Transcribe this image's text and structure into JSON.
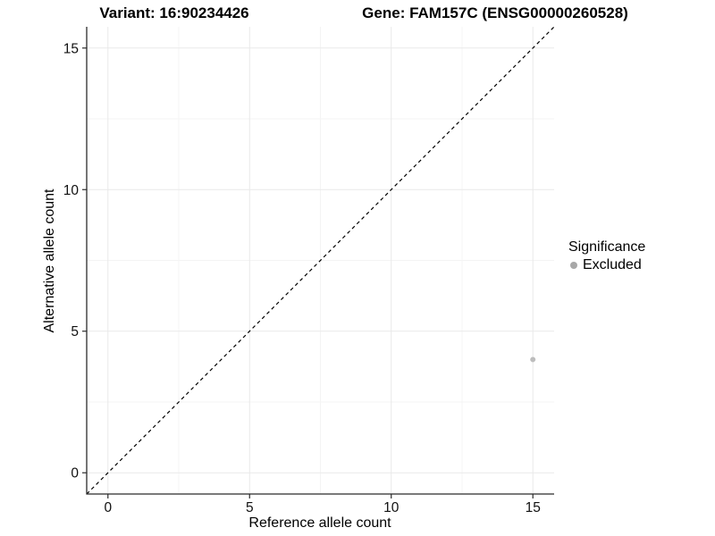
{
  "titles": {
    "variant": "Variant: 16:90234426",
    "gene": "Gene: FAM157C (ENSG00000260528)"
  },
  "chart_data": {
    "type": "scatter",
    "title_left": "Variant: 16:90234426",
    "title_right": "Gene: FAM157C (ENSG00000260528)",
    "xlabel": "Reference allele count",
    "ylabel": "Alternative allele count",
    "xlim": [
      -0.75,
      15.75
    ],
    "ylim": [
      -0.75,
      15.75
    ],
    "xticks": [
      0,
      5,
      10,
      15
    ],
    "yticks": [
      0,
      5,
      10,
      15
    ],
    "minor_xticks": [
      2.5,
      7.5,
      12.5
    ],
    "minor_yticks": [
      2.5,
      7.5,
      12.5
    ],
    "grid": true,
    "identity_line": {
      "from": [
        -0.75,
        -0.75
      ],
      "to": [
        15.75,
        15.75
      ],
      "style": "dashed",
      "color": "#000000"
    },
    "series": [
      {
        "name": "Excluded",
        "color": "#bdbdbd",
        "points": [
          {
            "x": 15,
            "y": 4
          }
        ]
      }
    ],
    "legend": {
      "position": "right",
      "title": "Significance",
      "entries": [
        {
          "label": "Excluded",
          "color": "#a8a8a8"
        }
      ]
    }
  },
  "style_colors": {
    "axis_line": "#2b2b2b",
    "major_grid": "#e9e9e9",
    "minor_grid": "#f4f4f4",
    "tick_label": "#111111",
    "point": "#bdbdbd",
    "legend_key": "#a8a8a8"
  }
}
